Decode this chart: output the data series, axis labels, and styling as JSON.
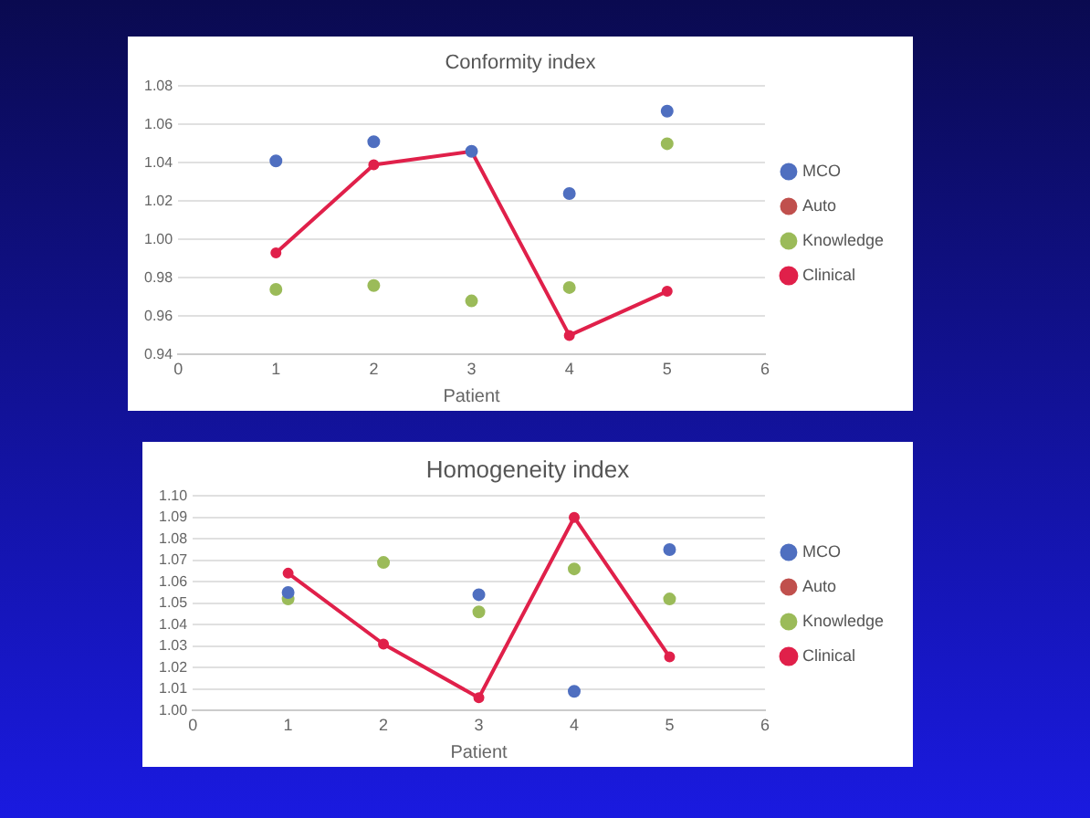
{
  "chart_data": [
    {
      "type": "scatter",
      "title": "Conformity index",
      "xlabel": "Patient",
      "x": [
        1,
        2,
        3,
        4,
        5
      ],
      "xlim": [
        0,
        6
      ],
      "xticks": [
        0,
        1,
        2,
        3,
        4,
        5,
        6
      ],
      "ylim": [
        0.94,
        1.08
      ],
      "yticks": [
        {
          "value": 0.94,
          "label": "0.94"
        },
        {
          "value": 0.96,
          "label": "0.96"
        },
        {
          "value": 0.98,
          "label": "0.98"
        },
        {
          "value": 1.0,
          "label": "1.00"
        },
        {
          "value": 1.02,
          "label": "1.02"
        },
        {
          "value": 1.04,
          "label": "1.04"
        },
        {
          "value": 1.06,
          "label": "1.06"
        },
        {
          "value": 1.08,
          "label": "1.08"
        }
      ],
      "grid": "y",
      "legend": "right",
      "marker": "circle",
      "series": [
        {
          "name": "MCO",
          "type": "scatter",
          "color": "#4f6fc0",
          "values": [
            1.041,
            1.051,
            1.046,
            1.024,
            1.067
          ]
        },
        {
          "name": "Auto",
          "type": "scatter",
          "color": "#c0504d",
          "values": [
            null,
            null,
            null,
            null,
            null
          ]
        },
        {
          "name": "Knowledge",
          "type": "scatter",
          "color": "#9bbb59",
          "values": [
            0.974,
            0.976,
            0.968,
            0.975,
            1.05
          ]
        },
        {
          "name": "Clinical",
          "type": "line",
          "color": "#e0204a",
          "values": [
            0.993,
            1.039,
            1.046,
            0.95,
            0.973
          ]
        }
      ]
    },
    {
      "type": "scatter",
      "title": "Homogeneity index",
      "xlabel": "Patient",
      "x": [
        1,
        2,
        3,
        4,
        5
      ],
      "xlim": [
        0,
        6
      ],
      "xticks": [
        0,
        1,
        2,
        3,
        4,
        5,
        6
      ],
      "ylim": [
        1.0,
        1.1
      ],
      "yticks": [
        {
          "value": 1.0,
          "label": "1.00"
        },
        {
          "value": 1.01,
          "label": "1.01"
        },
        {
          "value": 1.02,
          "label": "1.02"
        },
        {
          "value": 1.03,
          "label": "1.03"
        },
        {
          "value": 1.04,
          "label": "1.04"
        },
        {
          "value": 1.05,
          "label": "1.05"
        },
        {
          "value": 1.06,
          "label": "1.06"
        },
        {
          "value": 1.07,
          "label": "1.07"
        },
        {
          "value": 1.08,
          "label": "1.08"
        },
        {
          "value": 1.09,
          "label": "1.09"
        },
        {
          "value": 1.1,
          "label": "1.10"
        }
      ],
      "grid": "y",
      "legend": "right",
      "marker": "circle",
      "series": [
        {
          "name": "MCO",
          "type": "scatter",
          "color": "#4f6fc0",
          "values": [
            1.055,
            null,
            1.054,
            1.009,
            1.075
          ]
        },
        {
          "name": "Auto",
          "type": "scatter",
          "color": "#c0504d",
          "values": [
            null,
            null,
            null,
            null,
            null
          ]
        },
        {
          "name": "Knowledge",
          "type": "scatter",
          "color": "#9bbb59",
          "values": [
            1.052,
            1.069,
            1.046,
            1.066,
            1.052
          ]
        },
        {
          "name": "Clinical",
          "type": "line",
          "color": "#e0204a",
          "values": [
            1.064,
            1.031,
            1.006,
            1.09,
            1.025
          ]
        }
      ]
    }
  ]
}
